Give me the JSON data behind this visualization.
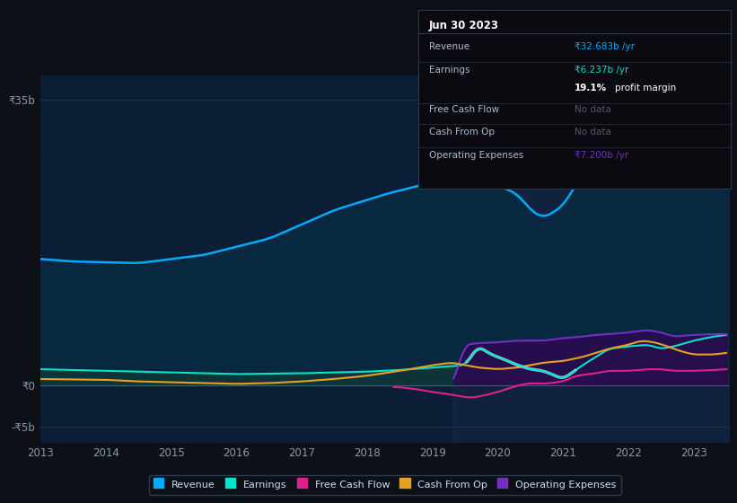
{
  "bg_color": "#0d1117",
  "plot_bg_color": "#0c1e35",
  "grid_color": "#1e3a5f",
  "revenue_color": "#00aaff",
  "revenue_fill": "#0a2a50",
  "earnings_color": "#00e5cc",
  "earnings_fill": "#1a4a4a",
  "fcf_color": "#e0208a",
  "cashop_color": "#e8a020",
  "opex_color": "#7030c0",
  "opex_fill": "#3a1a70",
  "highlight_fill": "#1a2a50",
  "tooltip": {
    "date": "Jun 30 2023",
    "revenue_label": "Revenue",
    "revenue_val": "₹32.683b /yr",
    "revenue_color": "#00aaff",
    "earnings_label": "Earnings",
    "earnings_val": "₹6.237b /yr",
    "earnings_color": "#00e5cc",
    "margin_val": "19.1%",
    "margin_text": " profit margin",
    "fcf_label": "Free Cash Flow",
    "fcf_val": "No data",
    "cashop_label": "Cash From Op",
    "cashop_val": "No data",
    "opex_label": "Operating Expenses",
    "opex_val": "₹7.200b /yr",
    "opex_color": "#7030c0"
  },
  "legend": [
    {
      "label": "Revenue",
      "color": "#00aaff"
    },
    {
      "label": "Earnings",
      "color": "#00e5cc"
    },
    {
      "label": "Free Cash Flow",
      "color": "#e0208a"
    },
    {
      "label": "Cash From Op",
      "color": "#e8a020"
    },
    {
      "label": "Operating Expenses",
      "color": "#7030c0"
    }
  ]
}
